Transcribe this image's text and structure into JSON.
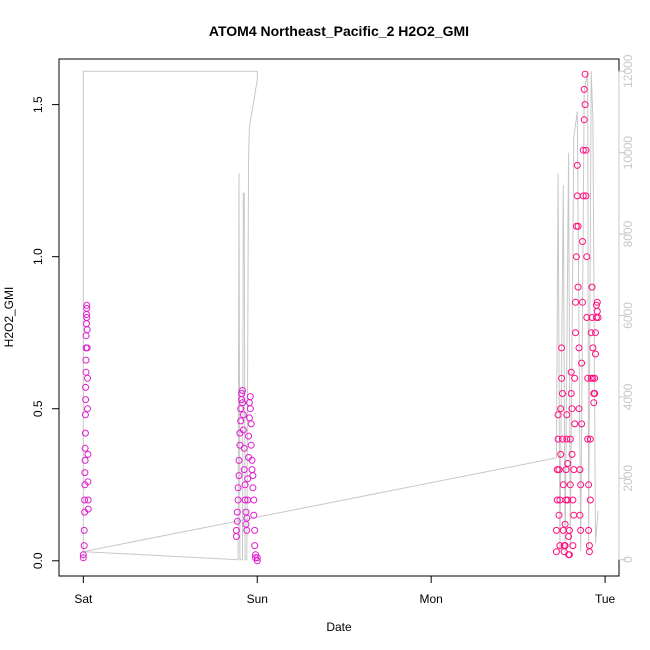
{
  "chart_data": {
    "type": "scatter",
    "title": "ATOM4 Northeast_Pacific_2 H2O2_GMI",
    "xlabel": "Date",
    "ylabel": "H2O2_GMI",
    "x_ticks": [
      "Sat",
      "Sun",
      "Mon",
      "Tue"
    ],
    "x_tick_days": [
      0,
      1,
      2,
      3
    ],
    "xlim_days": [
      -0.14,
      3.08
    ],
    "ylim": [
      -0.05,
      1.65
    ],
    "y_ticks": [
      0.0,
      0.5,
      1.0,
      1.5
    ],
    "y_tick_labels": [
      "0.0",
      "0.5",
      "1.0",
      "1.5"
    ],
    "y2_ticks": [
      0,
      2000,
      4000,
      6000,
      8000,
      10000,
      12000
    ],
    "y2_tick_labels": [
      "0",
      "2000",
      "4000",
      "6000",
      "8000",
      "10000",
      "12000"
    ],
    "y2lim": [
      -400,
      12300
    ],
    "grid": false,
    "legend": "none",
    "colors": {
      "points_low": "#e01fcf",
      "points_high": "#ff0f80",
      "altitude_line": "#c8c8c8",
      "right_axis": "#c8c8c8"
    },
    "series": [
      {
        "values_role": "H2O2_GMI (left axis)",
        "points": [
          [
            0.0,
            0.01
          ],
          [
            0.0,
            0.02
          ],
          [
            0.005,
            0.05
          ],
          [
            0.005,
            0.1
          ],
          [
            0.007,
            0.16
          ],
          [
            0.007,
            0.2
          ],
          [
            0.009,
            0.25
          ],
          [
            0.009,
            0.29
          ],
          [
            0.01,
            0.33
          ],
          [
            0.01,
            0.37
          ],
          [
            0.012,
            0.42
          ],
          [
            0.012,
            0.48
          ],
          [
            0.013,
            0.53
          ],
          [
            0.013,
            0.57
          ],
          [
            0.015,
            0.62
          ],
          [
            0.015,
            0.66
          ],
          [
            0.016,
            0.7
          ],
          [
            0.016,
            0.74
          ],
          [
            0.018,
            0.78
          ],
          [
            0.018,
            0.81
          ],
          [
            0.02,
            0.83
          ],
          [
            0.02,
            0.84
          ],
          [
            0.02,
            0.8
          ],
          [
            0.022,
            0.76
          ],
          [
            0.022,
            0.7
          ],
          [
            0.024,
            0.6
          ],
          [
            0.024,
            0.5
          ],
          [
            0.026,
            0.35
          ],
          [
            0.026,
            0.26
          ],
          [
            0.028,
            0.2
          ],
          [
            0.028,
            0.17
          ],
          [
            0.88,
            0.08
          ],
          [
            0.88,
            0.1
          ],
          [
            0.885,
            0.13
          ],
          [
            0.885,
            0.16
          ],
          [
            0.89,
            0.2
          ],
          [
            0.89,
            0.24
          ],
          [
            0.895,
            0.28
          ],
          [
            0.895,
            0.33
          ],
          [
            0.9,
            0.38
          ],
          [
            0.9,
            0.42
          ],
          [
            0.905,
            0.46
          ],
          [
            0.905,
            0.5
          ],
          [
            0.91,
            0.53
          ],
          [
            0.91,
            0.55
          ],
          [
            0.915,
            0.56
          ],
          [
            0.915,
            0.52
          ],
          [
            0.92,
            0.48
          ],
          [
            0.92,
            0.43
          ],
          [
            0.925,
            0.37
          ],
          [
            0.925,
            0.3
          ],
          [
            0.93,
            0.25
          ],
          [
            0.93,
            0.2
          ],
          [
            0.935,
            0.16
          ],
          [
            0.935,
            0.12
          ],
          [
            0.94,
            0.1
          ],
          [
            0.94,
            0.14
          ],
          [
            0.945,
            0.2
          ],
          [
            0.945,
            0.27
          ],
          [
            0.95,
            0.34
          ],
          [
            0.95,
            0.41
          ],
          [
            0.955,
            0.47
          ],
          [
            0.955,
            0.52
          ],
          [
            0.96,
            0.54
          ],
          [
            0.96,
            0.5
          ],
          [
            0.965,
            0.45
          ],
          [
            0.965,
            0.38
          ],
          [
            0.97,
            0.33
          ],
          [
            0.97,
            0.3
          ],
          [
            0.975,
            0.28
          ],
          [
            0.975,
            0.24
          ],
          [
            0.98,
            0.2
          ],
          [
            0.98,
            0.15
          ],
          [
            0.985,
            0.1
          ],
          [
            0.985,
            0.05
          ],
          [
            0.99,
            0.02
          ],
          [
            0.99,
            0.01
          ],
          [
            1.0,
            0.01
          ],
          [
            1.0,
            0.0
          ],
          [
            2.72,
            0.03
          ],
          [
            2.72,
            0.1
          ],
          [
            2.725,
            0.2
          ],
          [
            2.725,
            0.3
          ],
          [
            2.73,
            0.4
          ],
          [
            2.73,
            0.48
          ],
          [
            2.735,
            0.3
          ],
          [
            2.735,
            0.15
          ],
          [
            2.74,
            0.05
          ],
          [
            2.74,
            0.2
          ],
          [
            2.745,
            0.35
          ],
          [
            2.745,
            0.5
          ],
          [
            2.75,
            0.6
          ],
          [
            2.75,
            0.7
          ],
          [
            2.755,
            0.55
          ],
          [
            2.755,
            0.4
          ],
          [
            2.76,
            0.25
          ],
          [
            2.76,
            0.1
          ],
          [
            2.765,
            0.05
          ],
          [
            2.765,
            0.03
          ],
          [
            2.77,
            0.05
          ],
          [
            2.77,
            0.12
          ],
          [
            2.775,
            0.2
          ],
          [
            2.775,
            0.3
          ],
          [
            2.78,
            0.4
          ],
          [
            2.78,
            0.48
          ],
          [
            2.785,
            0.32
          ],
          [
            2.785,
            0.2
          ],
          [
            2.79,
            0.08
          ],
          [
            2.79,
            0.02
          ],
          [
            2.795,
            0.02
          ],
          [
            2.795,
            0.1
          ],
          [
            2.8,
            0.25
          ],
          [
            2.8,
            0.4
          ],
          [
            2.805,
            0.55
          ],
          [
            2.805,
            0.62
          ],
          [
            2.81,
            0.5
          ],
          [
            2.81,
            0.35
          ],
          [
            2.815,
            0.2
          ],
          [
            2.815,
            0.05
          ],
          [
            2.82,
            0.15
          ],
          [
            2.82,
            0.3
          ],
          [
            2.825,
            0.45
          ],
          [
            2.825,
            0.6
          ],
          [
            2.83,
            0.75
          ],
          [
            2.83,
            0.85
          ],
          [
            2.835,
            1.0
          ],
          [
            2.835,
            1.1
          ],
          [
            2.84,
            1.2
          ],
          [
            2.84,
            1.3
          ],
          [
            2.845,
            1.1
          ],
          [
            2.845,
            0.9
          ],
          [
            2.85,
            0.7
          ],
          [
            2.85,
            0.5
          ],
          [
            2.855,
            0.3
          ],
          [
            2.855,
            0.15
          ],
          [
            2.86,
            0.1
          ],
          [
            2.86,
            0.25
          ],
          [
            2.865,
            0.45
          ],
          [
            2.865,
            0.65
          ],
          [
            2.87,
            0.85
          ],
          [
            2.87,
            1.05
          ],
          [
            2.875,
            1.2
          ],
          [
            2.875,
            1.35
          ],
          [
            2.88,
            1.45
          ],
          [
            2.88,
            1.55
          ],
          [
            2.885,
            1.6
          ],
          [
            2.885,
            1.5
          ],
          [
            2.89,
            1.35
          ],
          [
            2.89,
            1.2
          ],
          [
            2.895,
            1.0
          ],
          [
            2.895,
            0.8
          ],
          [
            2.9,
            0.6
          ],
          [
            2.9,
            0.4
          ],
          [
            2.905,
            0.25
          ],
          [
            2.905,
            0.1
          ],
          [
            2.91,
            0.03
          ],
          [
            2.91,
            0.05
          ],
          [
            2.915,
            0.2
          ],
          [
            2.915,
            0.4
          ],
          [
            2.92,
            0.6
          ],
          [
            2.92,
            0.75
          ],
          [
            2.925,
            0.9
          ],
          [
            2.925,
            0.8
          ],
          [
            2.93,
            0.7
          ],
          [
            2.93,
            0.6
          ],
          [
            2.935,
            0.55
          ],
          [
            2.935,
            0.52
          ],
          [
            2.94,
            0.55
          ],
          [
            2.94,
            0.6
          ],
          [
            2.945,
            0.68
          ],
          [
            2.945,
            0.75
          ],
          [
            2.95,
            0.8
          ],
          [
            2.95,
            0.84
          ],
          [
            2.955,
            0.85
          ],
          [
            2.955,
            0.82
          ],
          [
            2.96,
            0.8
          ]
        ]
      },
      {
        "values_role": "altitude (right axis, grey line)",
        "points": [
          [
            0.0,
            0.0
          ],
          [
            0.0,
            12000
          ],
          [
            1.0,
            12000
          ],
          [
            1.0,
            11800
          ],
          [
            0.97,
            11000
          ],
          [
            0.96,
            10800
          ],
          [
            0.955,
            10600
          ],
          [
            0.95,
            10000
          ],
          [
            0.94,
            0
          ],
          [
            0.93,
            0
          ],
          [
            0.925,
            9000
          ],
          [
            0.92,
            9000
          ],
          [
            0.915,
            0
          ],
          [
            0.9,
            0
          ],
          [
            0.895,
            9500
          ],
          [
            0.89,
            0
          ],
          [
            0.0,
            200
          ],
          [
            2.72,
            2500
          ],
          [
            2.73,
            9500
          ],
          [
            2.74,
            200
          ],
          [
            2.76,
            9200
          ],
          [
            2.77,
            200
          ],
          [
            2.79,
            10000
          ],
          [
            2.8,
            300
          ],
          [
            2.82,
            10400
          ],
          [
            2.84,
            11000
          ],
          [
            2.86,
            200
          ],
          [
            2.88,
            11500
          ],
          [
            2.9,
            12000
          ],
          [
            2.905,
            200
          ],
          [
            2.92,
            12000
          ],
          [
            2.93,
            10800
          ],
          [
            2.945,
            400
          ],
          [
            2.96,
            1200
          ]
        ]
      }
    ]
  }
}
